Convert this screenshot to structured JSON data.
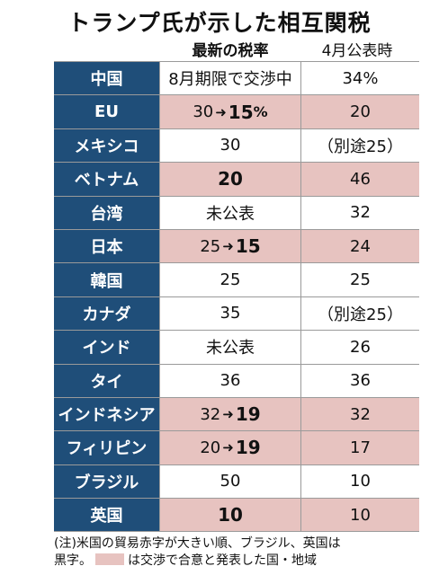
{
  "title": "トランプ氏が示した相互関税",
  "col_latest": "最新の税率",
  "col_april": "4月公表時",
  "chart_data": {
    "type": "table",
    "columns": [
      "最新の税率",
      "4月公表時"
    ],
    "rows": [
      {
        "country": "中国",
        "latest": "8月期限で交渉中",
        "april": "34%",
        "agreed": false
      },
      {
        "country": "EU",
        "latest_old": "30",
        "latest_new": "15",
        "latest_suffix": "%",
        "april": "20",
        "agreed": true
      },
      {
        "country": "メキシコ",
        "latest": "30",
        "april": "（別途25）",
        "agreed": false
      },
      {
        "country": "ベトナム",
        "latest": "20",
        "latest_strong": true,
        "april": "46",
        "agreed": true
      },
      {
        "country": "台湾",
        "latest": "未公表",
        "april": "32",
        "agreed": false
      },
      {
        "country": "日本",
        "latest_old": "25",
        "latest_new": "15",
        "april": "24",
        "agreed": true
      },
      {
        "country": "韓国",
        "latest": "25",
        "april": "25",
        "agreed": false
      },
      {
        "country": "カナダ",
        "latest": "35",
        "april": "（別途25）",
        "agreed": false
      },
      {
        "country": "インド",
        "latest": "未公表",
        "april": "26",
        "agreed": false
      },
      {
        "country": "タイ",
        "latest": "36",
        "april": "36",
        "agreed": false
      },
      {
        "country": "インドネシア",
        "latest_old": "32",
        "latest_new": "19",
        "april": "32",
        "agreed": true
      },
      {
        "country": "フィリピン",
        "latest_old": "20",
        "latest_new": "19",
        "april": "17",
        "agreed": true
      },
      {
        "country": "ブラジル",
        "latest": "50",
        "april": "10",
        "agreed": false
      },
      {
        "country": "英国",
        "latest": "10",
        "latest_strong": true,
        "april": "10",
        "agreed": true
      }
    ]
  },
  "note": {
    "line1": "(注)米国の貿易赤字が大きい順、ブラジル、英国は",
    "line2_pre": "黒字。",
    "line2_post": "は交渉で合意と発表した国・地域"
  },
  "colors": {
    "header_blue": "#1f4e79",
    "agreed_pink": "#e7c3c0"
  }
}
